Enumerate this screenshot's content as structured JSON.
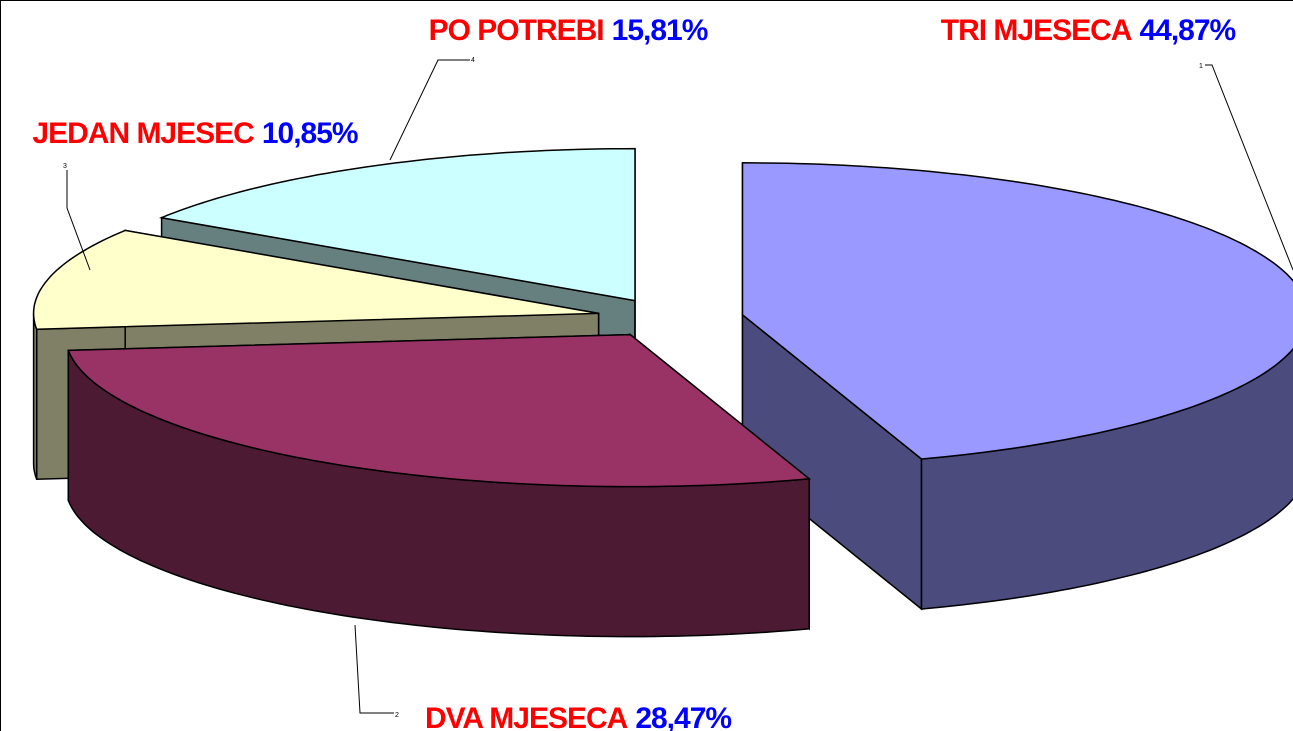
{
  "chart_data": {
    "type": "pie3d",
    "categories": [
      "TRI MJESECA",
      "DVA MJESECA",
      "JEDAN MJESEC",
      "PO POTREBI"
    ],
    "values": [
      44.87,
      28.47,
      10.85,
      15.81
    ],
    "value_labels": [
      "44,87%",
      "28,47%",
      "10,85%",
      "15,81%"
    ],
    "point_numbers": [
      "1",
      "2",
      "3",
      "4"
    ],
    "colors": [
      "#9999ff",
      "#993366",
      "#ffffcc",
      "#ccffff"
    ],
    "side_colors": [
      "#4b4b7d",
      "#4d1a33",
      "#808066",
      "#668080"
    ],
    "category_color": "#ff0000",
    "value_label_color": "#0000ff"
  }
}
